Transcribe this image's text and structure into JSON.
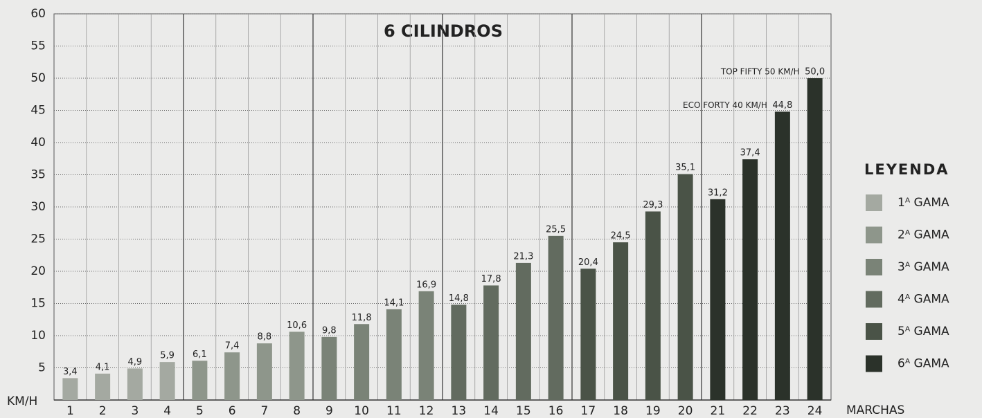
{
  "chart_data": {
    "type": "bar",
    "title": "6 CILINDROS",
    "y_label": "KM/H",
    "x_label": "MARCHAS",
    "legend_title": "LEYENDA",
    "categories": [
      "1",
      "2",
      "3",
      "4",
      "5",
      "6",
      "7",
      "8",
      "9",
      "10",
      "11",
      "12",
      "13",
      "14",
      "15",
      "16",
      "17",
      "18",
      "19",
      "20",
      "21",
      "22",
      "23",
      "24"
    ],
    "series": [
      {
        "name": "1ᴬ GAMA",
        "color": "#a4a9a1",
        "values": [
          3.4,
          4.1,
          4.9,
          5.9,
          null,
          null,
          null,
          null,
          null,
          null,
          null,
          null,
          null,
          null,
          null,
          null,
          null,
          null,
          null,
          null,
          null,
          null,
          null,
          null
        ],
        "value_labels": [
          "3,4",
          "4,1",
          "4,9",
          "5,9",
          null,
          null,
          null,
          null,
          null,
          null,
          null,
          null,
          null,
          null,
          null,
          null,
          null,
          null,
          null,
          null,
          null,
          null,
          null,
          null
        ]
      },
      {
        "name": "2ᴬ GAMA",
        "color": "#8e968b",
        "values": [
          null,
          null,
          null,
          null,
          6.1,
          7.4,
          8.8,
          10.6,
          null,
          null,
          null,
          null,
          null,
          null,
          null,
          null,
          null,
          null,
          null,
          null,
          null,
          null,
          null,
          null
        ],
        "value_labels": [
          null,
          null,
          null,
          null,
          "6,1",
          "7,4",
          "8,8",
          "10,6",
          null,
          null,
          null,
          null,
          null,
          null,
          null,
          null,
          null,
          null,
          null,
          null,
          null,
          null,
          null,
          null
        ]
      },
      {
        "name": "3ᴬ GAMA",
        "color": "#7a8377",
        "values": [
          null,
          null,
          null,
          null,
          null,
          null,
          null,
          null,
          9.8,
          11.8,
          14.1,
          16.9,
          null,
          null,
          null,
          null,
          null,
          null,
          null,
          null,
          null,
          null,
          null,
          null
        ],
        "value_labels": [
          null,
          null,
          null,
          null,
          null,
          null,
          null,
          null,
          "9,8",
          "11,8",
          "14,1",
          "16,9",
          null,
          null,
          null,
          null,
          null,
          null,
          null,
          null,
          null,
          null,
          null,
          null
        ]
      },
      {
        "name": "4ᴬ GAMA",
        "color": "#626b5f",
        "values": [
          null,
          null,
          null,
          null,
          null,
          null,
          null,
          null,
          null,
          null,
          null,
          null,
          14.8,
          17.8,
          21.3,
          25.5,
          null,
          null,
          null,
          null,
          null,
          null,
          null,
          null
        ],
        "value_labels": [
          null,
          null,
          null,
          null,
          null,
          null,
          null,
          null,
          null,
          null,
          null,
          null,
          "14,8",
          "17,8",
          "21,3",
          "25,5",
          null,
          null,
          null,
          null,
          null,
          null,
          null,
          null
        ]
      },
      {
        "name": "5ᴬ GAMA",
        "color": "#4a5347",
        "values": [
          null,
          null,
          null,
          null,
          null,
          null,
          null,
          null,
          null,
          null,
          null,
          null,
          null,
          null,
          null,
          null,
          20.4,
          24.5,
          29.3,
          35.1,
          null,
          null,
          null,
          null
        ],
        "value_labels": [
          null,
          null,
          null,
          null,
          null,
          null,
          null,
          null,
          null,
          null,
          null,
          null,
          null,
          null,
          null,
          null,
          "20,4",
          "24,5",
          "29,3",
          "35,1",
          null,
          null,
          null,
          null
        ]
      },
      {
        "name": "6ᴬ GAMA",
        "color": "#2b322a",
        "values": [
          null,
          null,
          null,
          null,
          null,
          null,
          null,
          null,
          null,
          null,
          null,
          null,
          null,
          null,
          null,
          null,
          null,
          null,
          null,
          null,
          31.2,
          37.4,
          44.8,
          50.0
        ],
        "value_labels": [
          null,
          null,
          null,
          null,
          null,
          null,
          null,
          null,
          null,
          null,
          null,
          null,
          null,
          null,
          null,
          null,
          null,
          null,
          null,
          null,
          "31,2",
          "37,4",
          "44,8",
          "50,0"
        ]
      }
    ],
    "annotations": [
      "ECO FORTY 40 KM/H",
      "TOP FIFTY 50 KM/H"
    ],
    "ylim": [
      0,
      60
    ],
    "yticks": [
      5,
      10,
      15,
      20,
      25,
      30,
      35,
      40,
      45,
      50,
      55,
      60
    ],
    "grid": true
  }
}
